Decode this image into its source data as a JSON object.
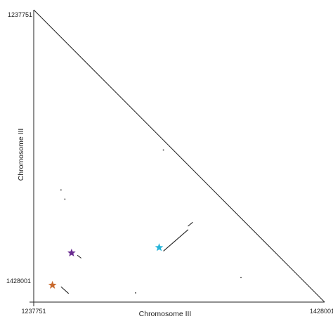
{
  "chart_data": {
    "type": "scatter",
    "xlabel": "Chromosome III",
    "ylabel": "Chromosome III",
    "x_ticks": [
      "1237751",
      "1428001"
    ],
    "y_ticks": [
      "1237751",
      "1428001"
    ],
    "xlim": [
      1237751,
      1428001
    ],
    "ylim": [
      1237751,
      1428001
    ],
    "grid": false,
    "legend": "none",
    "markers": [
      {
        "shape": "star",
        "color": "#6a2c91",
        "x": 1262500,
        "y": 1396000
      },
      {
        "shape": "star",
        "color": "#27b4d9",
        "x": 1319800,
        "y": 1392500
      },
      {
        "shape": "star",
        "color": "#c8692d",
        "x": 1250000,
        "y": 1417000
      }
    ],
    "segments": [
      {
        "x1": 1266300,
        "y1": 1397500,
        "x2": 1268800,
        "y2": 1399400
      },
      {
        "x1": 1322600,
        "y1": 1394800,
        "x2": 1338800,
        "y2": 1380800
      },
      {
        "x1": 1338600,
        "y1": 1378600,
        "x2": 1341800,
        "y2": 1376000
      },
      {
        "x1": 1255600,
        "y1": 1418000,
        "x2": 1260600,
        "y2": 1422400
      }
    ],
    "dots": [
      {
        "x": 1255600,
        "y": 1355000
      },
      {
        "x": 1258100,
        "y": 1361000
      },
      {
        "x": 1322600,
        "y": 1329000
      },
      {
        "x": 1373300,
        "y": 1412000
      },
      {
        "x": 1304400,
        "y": 1422000
      }
    ]
  }
}
